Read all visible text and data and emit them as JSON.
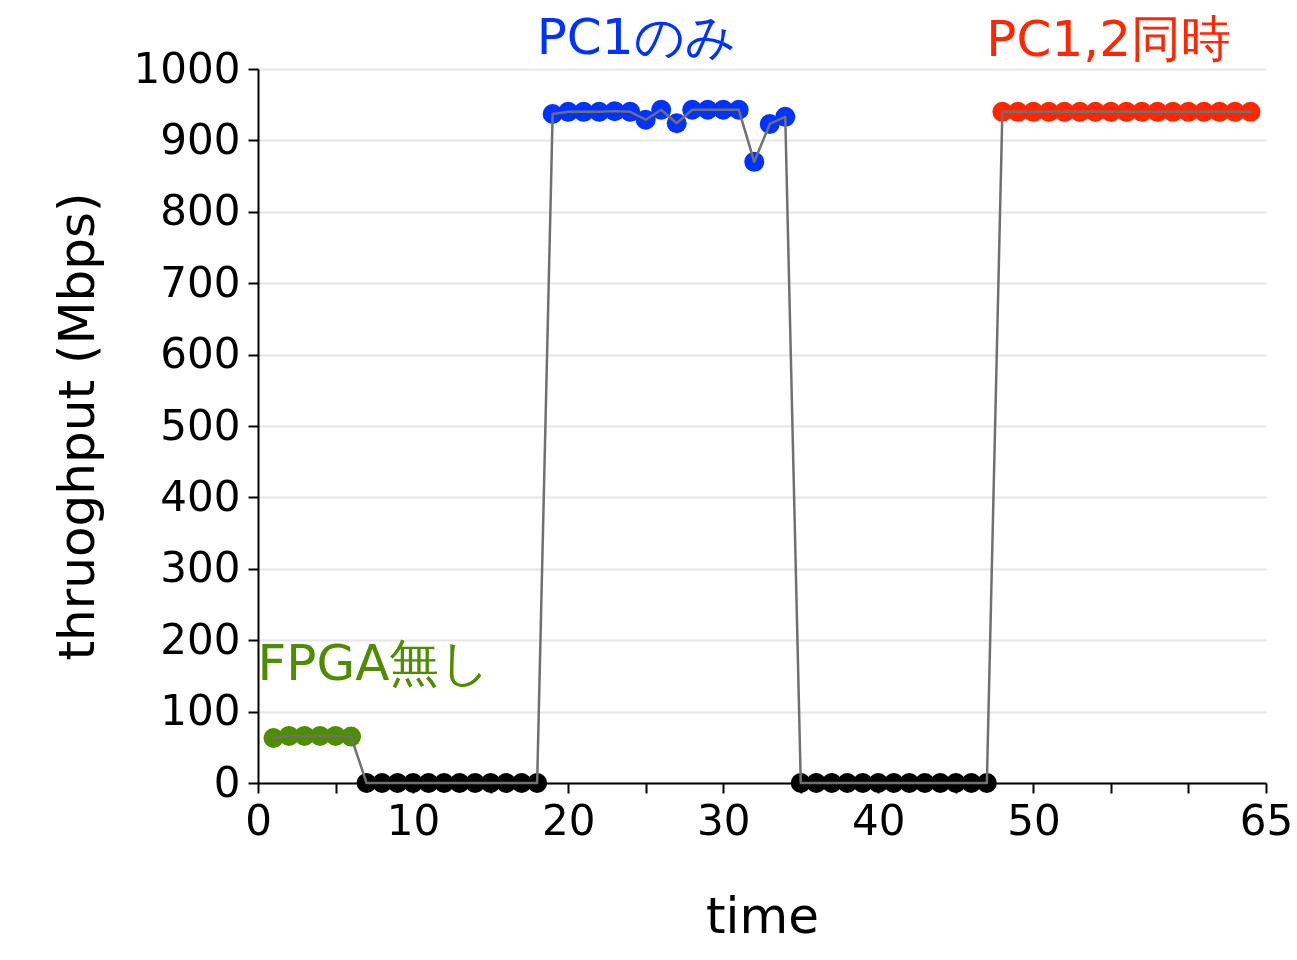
{
  "chart_data": {
    "type": "line",
    "xlabel": "time",
    "ylabel": "thruoghput (Mbps)",
    "xlim": [
      0,
      65
    ],
    "xticks": [
      0,
      {
        "value": 5,
        "label": null
      },
      10,
      {
        "value": 15,
        "label": null
      },
      20,
      {
        "value": 25,
        "label": null
      },
      30,
      {
        "value": 35,
        "label": null
      },
      40,
      {
        "value": 45,
        "label": null
      },
      50,
      {
        "value": 55,
        "label": null
      },
      {
        "value": 60,
        "label": null
      },
      65
    ],
    "ylim": [
      0,
      1000
    ],
    "yticks": [
      0,
      100,
      200,
      300,
      400,
      500,
      600,
      700,
      800,
      900,
      1000
    ],
    "grid": "y",
    "legend": false,
    "series": [
      {
        "color": "#707070",
        "marker": "none",
        "x": [
          1,
          2,
          3,
          4,
          5,
          6,
          7,
          8,
          9,
          10,
          11,
          12,
          13,
          14,
          15,
          16,
          17,
          18,
          19,
          20,
          21,
          22,
          23,
          24,
          25,
          26,
          27,
          28,
          29,
          30,
          31,
          32,
          33,
          34,
          35,
          36,
          37,
          38,
          39,
          40,
          41,
          42,
          43,
          44,
          45,
          46,
          47,
          48,
          49,
          50,
          51,
          52,
          53,
          54,
          55,
          56,
          57,
          58,
          59,
          60,
          61,
          62,
          63,
          64
        ],
        "values": [
          63,
          66,
          66,
          66,
          66,
          65,
          0,
          0,
          0,
          0,
          0,
          0,
          0,
          0,
          0,
          0,
          0,
          0,
          937,
          940,
          940,
          940,
          941,
          940,
          929,
          943,
          924,
          943,
          943,
          943,
          943,
          870,
          923,
          933,
          0,
          0,
          0,
          0,
          0,
          0,
          0,
          0,
          0,
          0,
          0,
          0,
          0,
          940,
          940,
          940,
          940,
          940,
          940,
          940,
          940,
          940,
          940,
          940,
          940,
          940,
          940,
          940,
          940,
          940
        ]
      },
      {
        "type": "scatter",
        "name": "FPGA無し",
        "color": "#4e8c00",
        "x": [
          1,
          2,
          3,
          4,
          5,
          6
        ],
        "values": [
          63,
          66,
          66,
          66,
          66,
          65
        ]
      },
      {
        "type": "scatter",
        "color": "#000000",
        "x": [
          7,
          8,
          9,
          10,
          11,
          12,
          13,
          14,
          15,
          16,
          17,
          18
        ],
        "values": [
          0,
          0,
          0,
          0,
          0,
          0,
          0,
          0,
          0,
          0,
          0,
          0
        ]
      },
      {
        "type": "scatter",
        "name": "PC1のみ",
        "color": "#0033ff",
        "x": [
          19,
          20,
          21,
          22,
          23,
          24,
          25,
          26,
          27,
          28,
          29,
          30,
          31,
          32,
          33,
          34
        ],
        "values": [
          937,
          940,
          940,
          940,
          941,
          940,
          929,
          943,
          924,
          943,
          943,
          943,
          943,
          870,
          923,
          933
        ]
      },
      {
        "type": "scatter",
        "color": "#000000",
        "x": [
          35,
          36,
          37,
          38,
          39,
          40,
          41,
          42,
          43,
          44,
          45,
          46,
          47
        ],
        "values": [
          0,
          0,
          0,
          0,
          0,
          0,
          0,
          0,
          0,
          0,
          0,
          0,
          0
        ]
      },
      {
        "type": "scatter",
        "name": "PC1,2同時",
        "color": "#ff2600",
        "x": [
          48,
          49,
          50,
          51,
          52,
          53,
          54,
          55,
          56,
          57,
          58,
          59,
          60,
          61,
          62,
          63,
          64
        ],
        "values": [
          940,
          940,
          940,
          940,
          940,
          940,
          940,
          940,
          940,
          940,
          940,
          940,
          940,
          940,
          940,
          940,
          940
        ]
      }
    ]
  }
}
